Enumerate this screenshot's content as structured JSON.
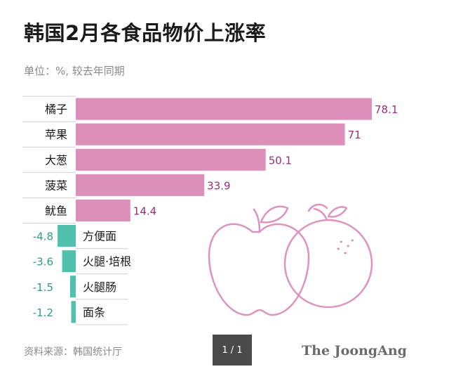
{
  "chart_data": {
    "type": "bar",
    "orientation": "horizontal",
    "title": "韩国2月各食品物价上涨率",
    "subtitle": "单位：%, 较去年同期",
    "categories": [
      "橘子",
      "苹果",
      "大葱",
      "菠菜",
      "鱿鱼",
      "方便面",
      "火腿·培根",
      "火腿肠",
      "面条"
    ],
    "values": [
      78.1,
      71,
      50.1,
      33.9,
      14.4,
      -4.8,
      -3.6,
      -1.5,
      -1.2
    ],
    "value_labels": [
      "78.1",
      "71",
      "50.1",
      "33.9",
      "14.4",
      "-4.8",
      "-3.6",
      "-1.5",
      "-1.2"
    ],
    "xlim": [
      -8.6,
      78.1
    ],
    "colors": {
      "positive": "#dc8fb8",
      "negative": "#4fc1ac",
      "positive_label": "#9a2f79",
      "negative_label": "#2e9c89",
      "illustration": "#dc94bf"
    }
  },
  "footer": {
    "source": "资料来源：韩国统计厅",
    "pager": "1 / 1",
    "brand": "The JoongAng"
  }
}
